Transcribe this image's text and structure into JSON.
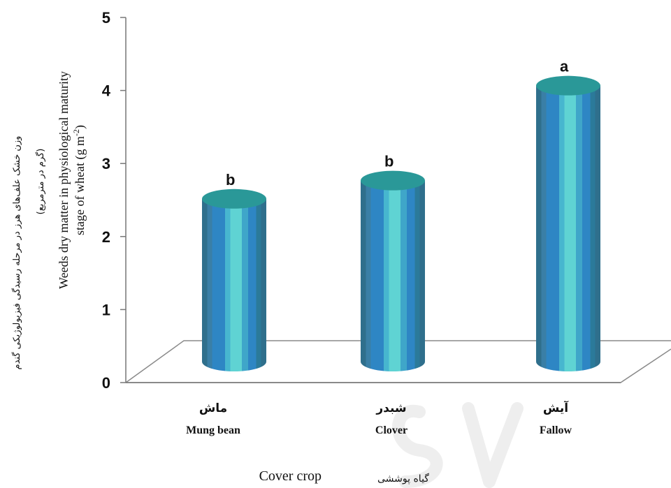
{
  "chart_data": {
    "type": "bar",
    "style": "3d-cylinder",
    "categories": [
      {
        "fa": "ماش",
        "en": "Mung bean"
      },
      {
        "fa": "شبدر",
        "en": "Clover"
      },
      {
        "fa": "آیش",
        "en": "Fallow"
      }
    ],
    "values": [
      2.65,
      2.9,
      4.2
    ],
    "significance_letters": [
      "b",
      "b",
      "a"
    ],
    "ylim": [
      0,
      5
    ],
    "yticks": [
      "0",
      "1",
      "2",
      "3",
      "4",
      "5"
    ],
    "grid": false,
    "xlabel": {
      "en": "Cover crop",
      "fa": "گیاه پوششی"
    },
    "ylabel": {
      "fa_line1": "وزن خشک علف‌های هرز در مرحله رسیدگی فیزیولوژیکی گندم",
      "fa_line2": "(گرم در مترمربع)",
      "en_line1": "Weeds dry matter in physiological maturity",
      "en_line2": "stage of wheat (g m-2)"
    },
    "colors": {
      "cylinder_top": "#2a9898",
      "stripe_dark": "#2f6f8c",
      "stripe_mid": "#2e86c4",
      "stripe_light": "#5fd3d3"
    }
  }
}
